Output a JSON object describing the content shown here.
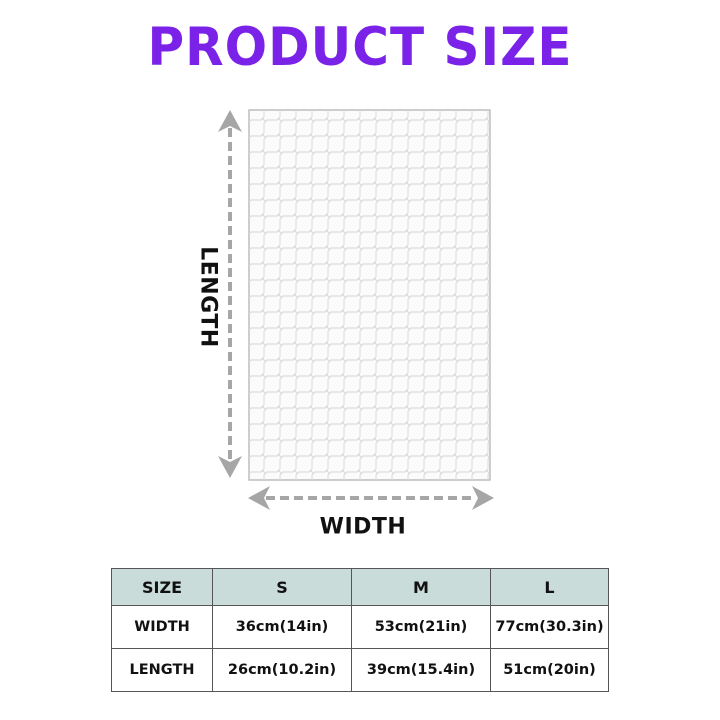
{
  "title": "PRODUCT SIZE",
  "colors": {
    "title": "#7a22e8",
    "arrow": "#a6a6a6",
    "table_header": "#c9dcd9",
    "puzzle_lines": "#d6d6d6"
  },
  "labels": {
    "length": "LENGTH",
    "width": "WIDTH"
  },
  "table": {
    "header": [
      "SIZE",
      "S",
      "M",
      "L"
    ],
    "rows": [
      [
        "WIDTH",
        "36cm(14in)",
        "53cm(21in)",
        "77cm(30.3in)"
      ],
      [
        "LENGTH",
        "26cm(10.2in)",
        "39cm(15.4in)",
        "51cm(20in)"
      ]
    ]
  }
}
